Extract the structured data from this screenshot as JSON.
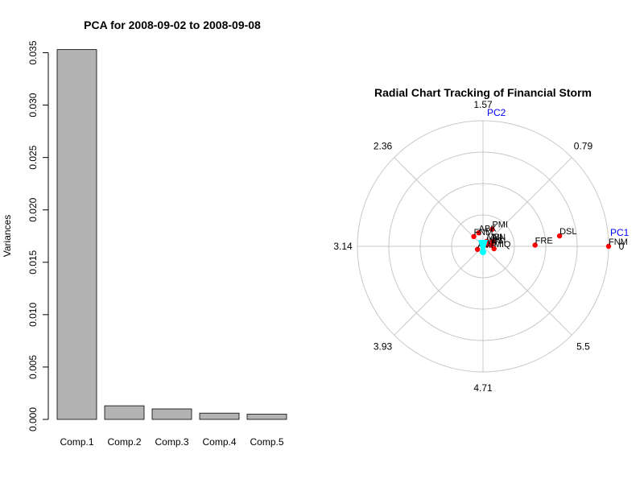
{
  "chart_data": [
    {
      "type": "bar",
      "title": "PCA for 2008-09-02 to 2008-09-08",
      "xlabel": "",
      "ylabel": "Variances",
      "categories": [
        "Comp.1",
        "Comp.2",
        "Comp.3",
        "Comp.4",
        "Comp.5"
      ],
      "values": [
        0.0353,
        0.0013,
        0.001,
        0.0006,
        0.0005
      ],
      "ylim": [
        0,
        0.0355
      ],
      "yticks": [
        "0.000",
        "0.005",
        "0.010",
        "0.015",
        "0.020",
        "0.025",
        "0.030",
        "0.035"
      ],
      "bar_color": "#b3b3b3",
      "grid": false
    },
    {
      "type": "scatter",
      "subtype": "polar",
      "title": "Radial Chart Tracking of Financial Storm",
      "radial_rings": 4,
      "angle_labels": [
        "0",
        "0.79",
        "1.57",
        "2.36",
        "3.14",
        "3.93",
        "4.71",
        "5.5"
      ],
      "axis_labels": [
        "PC1",
        "PC2"
      ],
      "axis_label_color": "#0000ff",
      "point_color": "#ff0000",
      "center_color": "#00ffff",
      "points": [
        {
          "label": "FNM",
          "x": 2.05,
          "y": 0.0
        },
        {
          "label": "DSL",
          "x": 1.25,
          "y": 0.17
        },
        {
          "label": "FRE",
          "x": 0.85,
          "y": 0.02
        },
        {
          "label": "PMI",
          "x": 0.15,
          "y": 0.28
        },
        {
          "label": "ABK",
          "x": -0.07,
          "y": 0.22
        },
        {
          "label": "FNM",
          "x": -0.15,
          "y": 0.16
        },
        {
          "label": "MBI",
          "x": 0.06,
          "y": 0.08
        },
        {
          "label": "NN",
          "x": 0.16,
          "y": 0.08
        },
        {
          "label": "WM",
          "x": 0.06,
          "y": 0.02
        },
        {
          "label": "BSI",
          "x": 0.14,
          "y": 0.02
        },
        {
          "label": "MIQ",
          "x": 0.18,
          "y": -0.04
        },
        {
          "label": "AMP",
          "x": -0.09,
          "y": -0.05
        }
      ]
    }
  ]
}
